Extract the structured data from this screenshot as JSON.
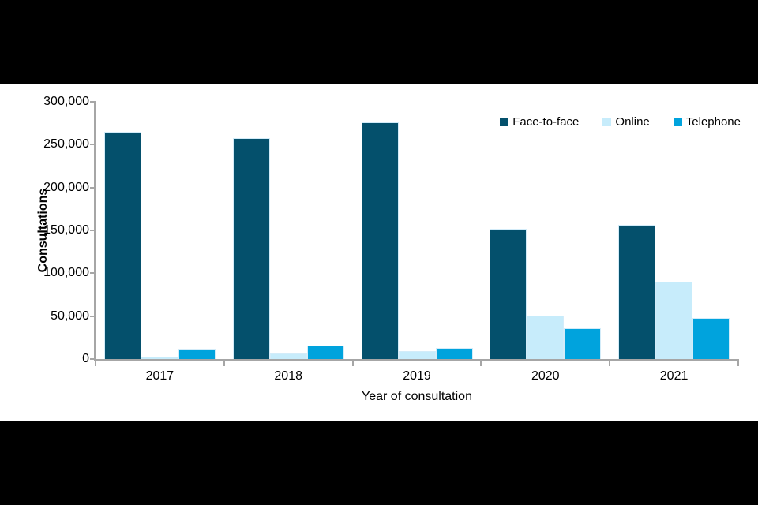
{
  "page": {
    "letterbox_color": "#000000",
    "canvas_color": "#ffffff"
  },
  "chart_data": {
    "type": "bar",
    "title": "",
    "xlabel": "Year of consultation",
    "ylabel": "Consultations",
    "categories": [
      "2017",
      "2018",
      "2019",
      "2020",
      "2021"
    ],
    "series": [
      {
        "name": "Face-to-face",
        "color": "#04506c",
        "values": [
          265000,
          258000,
          276000,
          152000,
          156000
        ]
      },
      {
        "name": "Online",
        "color": "#c7ecfb",
        "values": [
          3000,
          6000,
          9000,
          51000,
          90000
        ]
      },
      {
        "name": "Telephone",
        "color": "#00a3dd",
        "values": [
          12000,
          16000,
          13000,
          36000,
          48000
        ]
      }
    ],
    "ylim": [
      0,
      300000
    ],
    "ytick_step": 50000,
    "ytick_labels": [
      "0",
      "50,000",
      "100,000",
      "150,000",
      "200,000",
      "250,000",
      "300,000"
    ],
    "grid": false,
    "legend_position": "top-right",
    "axis_color": "#a6a6a6",
    "bar_outline_color": "#d3ecf9",
    "text_color": "#000000"
  }
}
